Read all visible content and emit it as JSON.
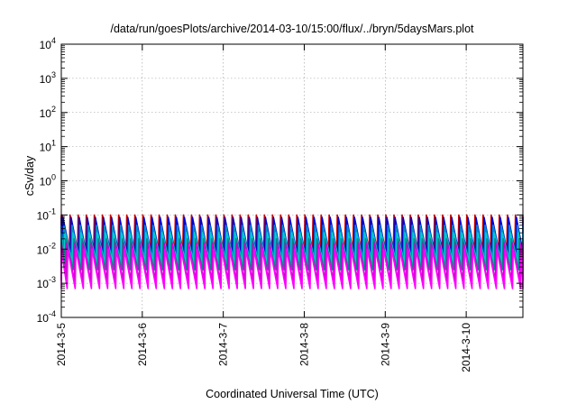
{
  "chart_data": {
    "type": "line",
    "title": "/data/run/goesPlots/archive/2014-03-10/15:00/flux/../bryn/5daysMars.plot",
    "xlabel": "Coordinated Universal Time (UTC)",
    "ylabel": "cSv/day",
    "yscale": "log",
    "ylim": [
      0.0001,
      10000
    ],
    "xlim_days": [
      0,
      5.7
    ],
    "x_ticks": [
      {
        "day": 0,
        "label": "2014-3-5"
      },
      {
        "day": 1,
        "label": "2014-3-6"
      },
      {
        "day": 2,
        "label": "2014-3-7"
      },
      {
        "day": 3,
        "label": "2014-3-8"
      },
      {
        "day": 4,
        "label": "2014-3-9"
      },
      {
        "day": 5,
        "label": "2014-3-10"
      }
    ],
    "y_ticks": [
      {
        "value": 0.0001,
        "base": "10",
        "exp": "-4"
      },
      {
        "value": 0.001,
        "base": "10",
        "exp": "-3"
      },
      {
        "value": 0.01,
        "base": "10",
        "exp": "-2"
      },
      {
        "value": 0.1,
        "base": "10",
        "exp": "-1"
      },
      {
        "value": 1,
        "base": "10",
        "exp": "0"
      },
      {
        "value": 10,
        "base": "10",
        "exp": "1"
      },
      {
        "value": 100,
        "base": "10",
        "exp": "2"
      },
      {
        "value": 1000,
        "base": "10",
        "exp": "3"
      },
      {
        "value": 10000,
        "base": "10",
        "exp": "4"
      }
    ],
    "grid": true,
    "sawtooth_period_days": 0.1,
    "series": [
      {
        "color": "#cc0000",
        "max": 0.1,
        "min": 0.009,
        "phase": 0.0
      },
      {
        "color": "#0000cc",
        "max": 0.085,
        "min": 0.007,
        "phase": 0.12
      },
      {
        "color": "#0088cc",
        "max": 0.05,
        "min": 0.005,
        "phase": 0.24
      },
      {
        "color": "#00cccc",
        "max": 0.03,
        "min": 0.004,
        "phase": 0.36
      },
      {
        "color": "#008888",
        "max": 0.02,
        "min": 0.0025,
        "phase": 0.48
      },
      {
        "color": "#cc00cc",
        "max": 0.015,
        "min": 0.0012,
        "phase": 0.6
      },
      {
        "color": "#ff00ff",
        "max": 0.01,
        "min": 0.0007,
        "phase": 0.72
      }
    ]
  }
}
